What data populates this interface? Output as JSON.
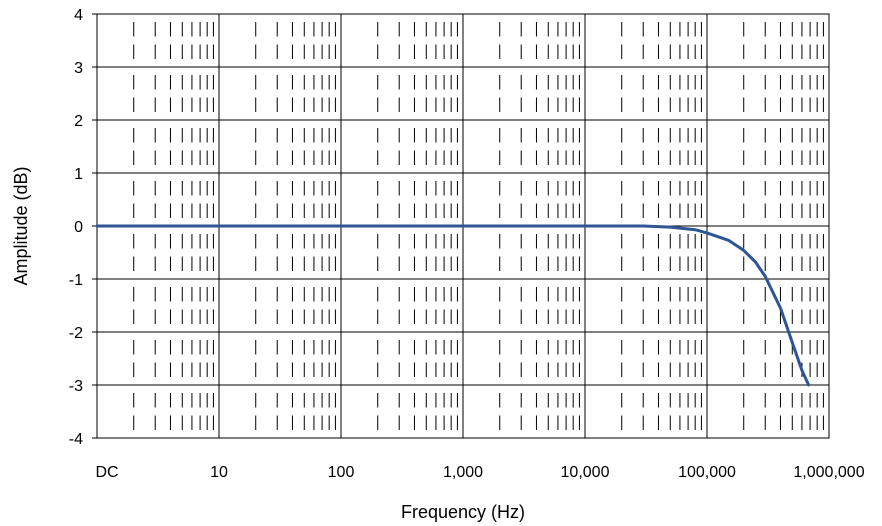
{
  "chart_data": {
    "type": "line",
    "title": "",
    "xlabel": "Frequency (Hz)",
    "ylabel": "Amplitude (dB)",
    "x_scale": "log",
    "xlim": [
      1,
      1000000
    ],
    "ylim": [
      -4,
      4
    ],
    "x_tick_labels": [
      "DC",
      "10",
      "100",
      "1,000",
      "10,000",
      "100,000",
      "1,000,000"
    ],
    "y_ticks": [
      4,
      3,
      2,
      1,
      0,
      -1,
      -2,
      -3,
      -4
    ],
    "y_tick_labels": [
      "4",
      "3",
      "2",
      "1",
      "0",
      "-1",
      "-2",
      "-3",
      "-4"
    ],
    "grid": true,
    "series": [
      {
        "color": "#2E5597",
        "points": [
          [
            1,
            0
          ],
          [
            1000,
            0
          ],
          [
            10000,
            0
          ],
          [
            30000,
            0
          ],
          [
            50000,
            -0.02
          ],
          [
            80000,
            -0.07
          ],
          [
            100000,
            -0.13
          ],
          [
            150000,
            -0.27
          ],
          [
            200000,
            -0.46
          ],
          [
            250000,
            -0.68
          ],
          [
            300000,
            -0.95
          ],
          [
            400000,
            -1.55
          ],
          [
            500000,
            -2.2
          ],
          [
            600000,
            -2.72
          ],
          [
            680000,
            -3.0
          ]
        ]
      }
    ]
  }
}
